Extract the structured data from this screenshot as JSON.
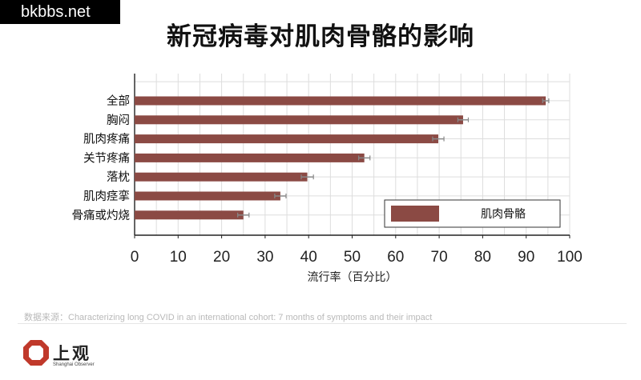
{
  "watermark": "bkbbs.net",
  "title": "新冠病毒对肌肉骨骼的影响",
  "source": "数据来源：Characterizing long COVID in an international cohort: 7 months of symptoms and their impact",
  "logo": {
    "name": "上观",
    "tagline": "Shanghai Observer",
    "color": "#c0392b"
  },
  "colors": {
    "bar": "#8b4a44",
    "error": "#888888",
    "grid": "#dddddd",
    "axis": "#222222"
  },
  "chart_data": {
    "type": "bar",
    "orientation": "horizontal",
    "title": "新冠病毒对肌肉骨骼的影响",
    "categories": [
      "全部",
      "胸闷",
      "肌肉疼痛",
      "关节疼痛",
      "落枕",
      "肌肉痉挛",
      "骨痛或灼烧"
    ],
    "series": [
      {
        "name": "肌肉骨骼",
        "values": [
          94.5,
          75.5,
          69.8,
          52.8,
          39.7,
          33.5,
          25.0
        ],
        "error": [
          0.7,
          1.2,
          1.3,
          1.3,
          1.4,
          1.3,
          1.3
        ]
      }
    ],
    "xlabel": "流行率（百分比）",
    "ylabel": "",
    "xlim": [
      0,
      100
    ],
    "xticks": [
      0,
      10,
      20,
      30,
      40,
      50,
      60,
      70,
      80,
      90,
      100
    ],
    "grid": true,
    "legend": "bottom-right"
  }
}
